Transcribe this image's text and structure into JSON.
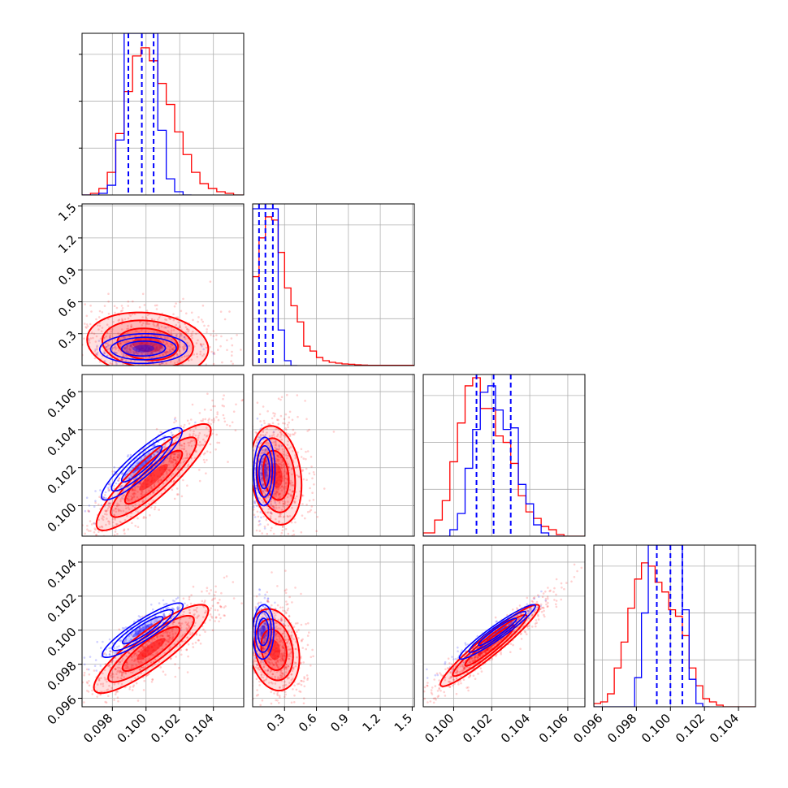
{
  "chart_data": {
    "type": "corner",
    "title": "",
    "grid": true,
    "n_params": 4,
    "colors": {
      "series_a": "#0000ff",
      "series_b": "#ff0000"
    },
    "series": [
      {
        "color": "#0000ff",
        "style": "histogram+contours",
        "quantile_lines": true
      },
      {
        "color": "#ff0000",
        "style": "histogram+contours+points"
      }
    ],
    "axes": [
      {
        "range": [
          0.0962,
          0.1058
        ],
        "ticks": [
          0.098,
          0.1,
          0.102,
          0.104
        ],
        "tick_labels": [
          "0.098",
          "0.100",
          "0.102",
          "0.104"
        ]
      },
      {
        "range": [
          0.0,
          1.52
        ],
        "ticks": [
          0.3,
          0.6,
          0.9,
          1.2,
          1.5
        ],
        "tick_labels": [
          "0.3",
          "0.6",
          "0.9",
          "1.2",
          "1.5"
        ]
      },
      {
        "range": [
          0.0984,
          0.1069
        ],
        "ticks": [
          0.1,
          0.102,
          0.104,
          0.106
        ],
        "tick_labels": [
          "0.100",
          "0.102",
          "0.104",
          "0.106"
        ]
      },
      {
        "range": [
          0.0955,
          0.105
        ],
        "ticks": [
          0.096,
          0.098,
          0.1,
          0.102,
          0.104
        ],
        "tick_labels": [
          "0.096",
          "0.098",
          "0.100",
          "0.102",
          "0.104"
        ]
      }
    ],
    "marginals": [
      {
        "quantiles_blue": [
          0.09895,
          0.09975,
          0.10045
        ],
        "blue": {
          "edges": [
            0.0962,
            0.0972,
            0.0977,
            0.0982,
            0.0987,
            0.0992,
            0.0997,
            0.1002,
            0.1007,
            0.1012,
            0.1017,
            0.1022,
            0.1027
          ],
          "heights": [
            0,
            0.01,
            0.06,
            0.34,
            1.0,
            1.0,
            1.0,
            1.0,
            0.4,
            0.1,
            0.02,
            0.0
          ]
        },
        "red": {
          "edges": [
            0.0962,
            0.0967,
            0.0972,
            0.0977,
            0.0982,
            0.0987,
            0.0992,
            0.0997,
            0.1002,
            0.1007,
            0.1012,
            0.1017,
            0.1022,
            0.1027,
            0.1032,
            0.1037,
            0.1042,
            0.1047,
            0.1052,
            0.1058
          ],
          "heights": [
            0.0,
            0.01,
            0.04,
            0.14,
            0.38,
            0.64,
            0.86,
            0.91,
            0.83,
            0.69,
            0.56,
            0.39,
            0.25,
            0.14,
            0.07,
            0.04,
            0.02,
            0.01,
            0.0
          ]
        }
      },
      {
        "quantiles_blue": [
          0.06,
          0.12,
          0.19
        ],
        "blue": {
          "edges": [
            0.0,
            0.06,
            0.12,
            0.18,
            0.24,
            0.3,
            0.36,
            0.42
          ],
          "heights": [
            0.97,
            0.97,
            0.97,
            0.97,
            0.22,
            0.03,
            0.0
          ]
        },
        "red": {
          "edges": [
            0.0,
            0.06,
            0.12,
            0.18,
            0.24,
            0.3,
            0.36,
            0.42,
            0.48,
            0.54,
            0.6,
            0.66,
            0.72,
            0.78,
            0.84,
            0.9,
            0.96,
            1.02,
            1.08,
            1.52
          ],
          "heights": [
            0.55,
            0.79,
            0.92,
            0.9,
            0.7,
            0.48,
            0.37,
            0.27,
            0.12,
            0.09,
            0.05,
            0.03,
            0.02,
            0.015,
            0.01,
            0.008,
            0.005,
            0.003,
            0.002
          ]
        }
      },
      {
        "quantiles_blue": [
          0.1012,
          0.1021,
          0.103
        ],
        "blue": {
          "edges": [
            0.0984,
            0.0998,
            0.1002,
            0.1006,
            0.101,
            0.1014,
            0.1018,
            0.1022,
            0.1026,
            0.103,
            0.1034,
            0.1038,
            0.1042,
            0.1046,
            0.105,
            0.1058
          ],
          "heights": [
            0.0,
            0.04,
            0.14,
            0.42,
            0.66,
            0.89,
            0.93,
            0.78,
            0.66,
            0.67,
            0.32,
            0.2,
            0.07,
            0.02,
            0.0
          ]
        },
        "red": {
          "edges": [
            0.0984,
            0.099,
            0.0994,
            0.0998,
            0.1002,
            0.1006,
            0.101,
            0.1014,
            0.1018,
            0.1022,
            0.1026,
            0.103,
            0.1034,
            0.1038,
            0.1042,
            0.1046,
            0.105,
            0.1054,
            0.1058,
            0.1069
          ],
          "heights": [
            0.02,
            0.1,
            0.22,
            0.46,
            0.7,
            0.93,
            0.98,
            0.79,
            0.79,
            0.62,
            0.58,
            0.45,
            0.25,
            0.15,
            0.11,
            0.06,
            0.04,
            0.01,
            0.0
          ]
        }
      },
      {
        "quantiles_blue": [
          0.0992,
          0.1,
          0.1007
        ],
        "blue": {
          "edges": [
            0.0955,
            0.0979,
            0.0983,
            0.0987,
            0.0991,
            0.0995,
            0.0999,
            0.1003,
            0.1007,
            0.1011,
            0.1015,
            0.1019,
            0.1023
          ],
          "heights": [
            0.0,
            0.18,
            0.58,
            1.0,
            1.0,
            1.0,
            1.0,
            1.0,
            0.6,
            0.17,
            0.02,
            0.0
          ]
        },
        "red": {
          "edges": [
            0.0955,
            0.0959,
            0.0963,
            0.0967,
            0.0971,
            0.0975,
            0.0979,
            0.0983,
            0.0987,
            0.0991,
            0.0995,
            0.0999,
            0.1003,
            0.1007,
            0.1011,
            0.1015,
            0.1019,
            0.1023,
            0.1027,
            0.1031,
            0.1035,
            0.105
          ],
          "heights": [
            0.02,
            0.03,
            0.08,
            0.24,
            0.4,
            0.61,
            0.79,
            0.89,
            0.87,
            0.77,
            0.71,
            0.6,
            0.56,
            0.44,
            0.24,
            0.13,
            0.05,
            0.03,
            0.01,
            0.0,
            0.0
          ]
        }
      }
    ],
    "pairs": [
      {
        "row": 1,
        "col": 0,
        "blue": {
          "center": [
            0.09985,
            0.16
          ],
          "sd": [
            0.0013,
            0.07
          ],
          "rho": 0.05
        },
        "red": {
          "center": [
            0.1001,
            0.2
          ],
          "sd": [
            0.0018,
            0.15
          ],
          "rho": -0.15
        }
      },
      {
        "row": 2,
        "col": 0,
        "blue": {
          "center": [
            0.09975,
            0.1022
          ],
          "sd": [
            0.0012,
            0.00095
          ],
          "rho": 0.9
        },
        "red": {
          "center": [
            0.10045,
            0.1015
          ],
          "sd": [
            0.0017,
            0.0014
          ],
          "rho": 0.88
        }
      },
      {
        "row": 2,
        "col": 1,
        "blue": {
          "center": [
            0.11,
            0.1018
          ],
          "sd": [
            0.05,
            0.0009
          ],
          "rho": 0.05
        },
        "red": {
          "center": [
            0.22,
            0.1016
          ],
          "sd": [
            0.12,
            0.0013
          ],
          "rho": -0.2
        }
      },
      {
        "row": 3,
        "col": 0,
        "blue": {
          "center": [
            0.0998,
            0.1
          ],
          "sd": [
            0.0012,
            0.0008
          ],
          "rho": 0.9
        },
        "red": {
          "center": [
            0.1003,
            0.0989
          ],
          "sd": [
            0.0017,
            0.0013
          ],
          "rho": 0.87
        }
      },
      {
        "row": 3,
        "col": 1,
        "blue": {
          "center": [
            0.1,
            0.0999
          ],
          "sd": [
            0.05,
            0.0008
          ],
          "rho": 0.05
        },
        "red": {
          "center": [
            0.2,
            0.09885
          ],
          "sd": [
            0.12,
            0.0012
          ],
          "rho": -0.2
        }
      },
      {
        "row": 3,
        "col": 2,
        "blue": {
          "center": [
            0.1023,
            0.0999
          ],
          "sd": [
            0.001,
            0.0008
          ],
          "rho": 0.95
        },
        "red": {
          "center": [
            0.1019,
            0.0991
          ],
          "sd": [
            0.0013,
            0.0012
          ],
          "rho": 0.95
        }
      }
    ]
  }
}
